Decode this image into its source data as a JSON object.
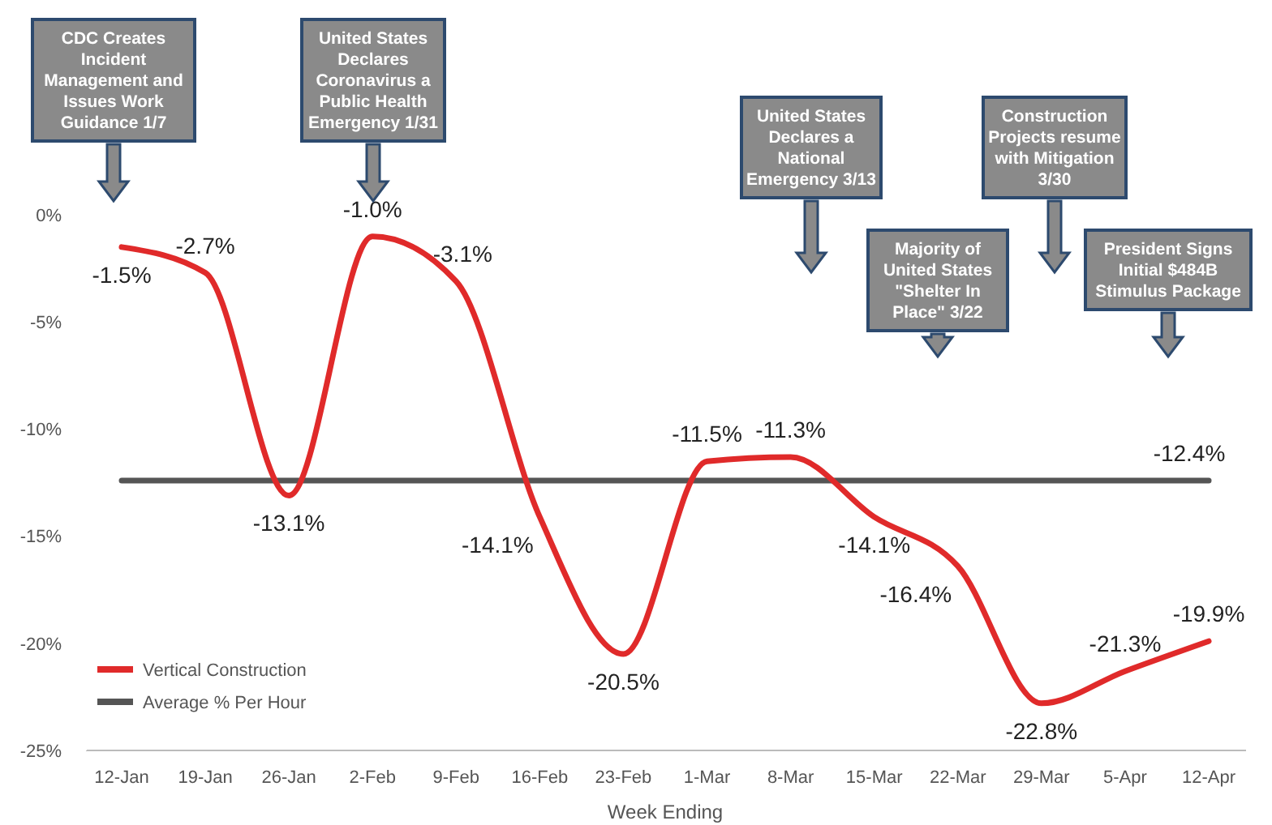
{
  "chart_data": {
    "type": "line",
    "xlabel": "Week Ending",
    "categories": [
      "12-Jan",
      "19-Jan",
      "26-Jan",
      "2-Feb",
      "9-Feb",
      "16-Feb",
      "23-Feb",
      "1-Mar",
      "8-Mar",
      "15-Mar",
      "22-Mar",
      "29-Mar",
      "5-Apr",
      "12-Apr"
    ],
    "series": [
      {
        "name": "Vertical Construction",
        "color": "#e02a2a",
        "values": [
          -1.5,
          -2.7,
          -13.1,
          -1.0,
          -3.1,
          -14.1,
          -20.5,
          -11.5,
          -11.3,
          -14.1,
          -16.4,
          -22.8,
          -21.3,
          -19.9
        ],
        "value_labels": [
          "-1.5%",
          "-2.7%",
          "-13.1%",
          "-1.0%",
          "-3.1%",
          "-14.1%",
          "-20.5%",
          "-11.5%",
          "-11.3%",
          "-14.1%",
          "-16.4%",
          "-22.8%",
          "-21.3%",
          "-19.9%"
        ]
      },
      {
        "name": "Average % Per Hour",
        "color": "#555555",
        "values": [
          -12.4,
          -12.4,
          -12.4,
          -12.4,
          -12.4,
          -12.4,
          -12.4,
          -12.4,
          -12.4,
          -12.4,
          -12.4,
          -12.4,
          -12.4,
          -12.4
        ],
        "value_labels": [
          null,
          null,
          null,
          null,
          null,
          null,
          null,
          null,
          null,
          null,
          null,
          null,
          null,
          "-12.4%"
        ]
      }
    ],
    "ylim": [
      -25,
      0.5
    ],
    "yticks": [
      {
        "value": 0,
        "label": "0%"
      },
      {
        "value": -5,
        "label": "-5%"
      },
      {
        "value": -10,
        "label": "-10%"
      },
      {
        "value": -15,
        "label": "-15%"
      },
      {
        "value": -20,
        "label": "-20%"
      },
      {
        "value": -25,
        "label": "-25%"
      }
    ],
    "grid": false,
    "legend": "bottom left",
    "marker": "none",
    "line_style": "solid",
    "annotations": [
      "CDC Creates Incident Management and Issues Work Guidance 1/7",
      "United States Declares Coronavirus a Public Health Emergency 1/31",
      "United States Declares a National Emergency 3/13",
      "Majority of United States \"Shelter In Place\" 3/22",
      "Construction Projects resume with Mitigation 3/30",
      "President Signs Initial $484B Stimulus Package"
    ]
  }
}
